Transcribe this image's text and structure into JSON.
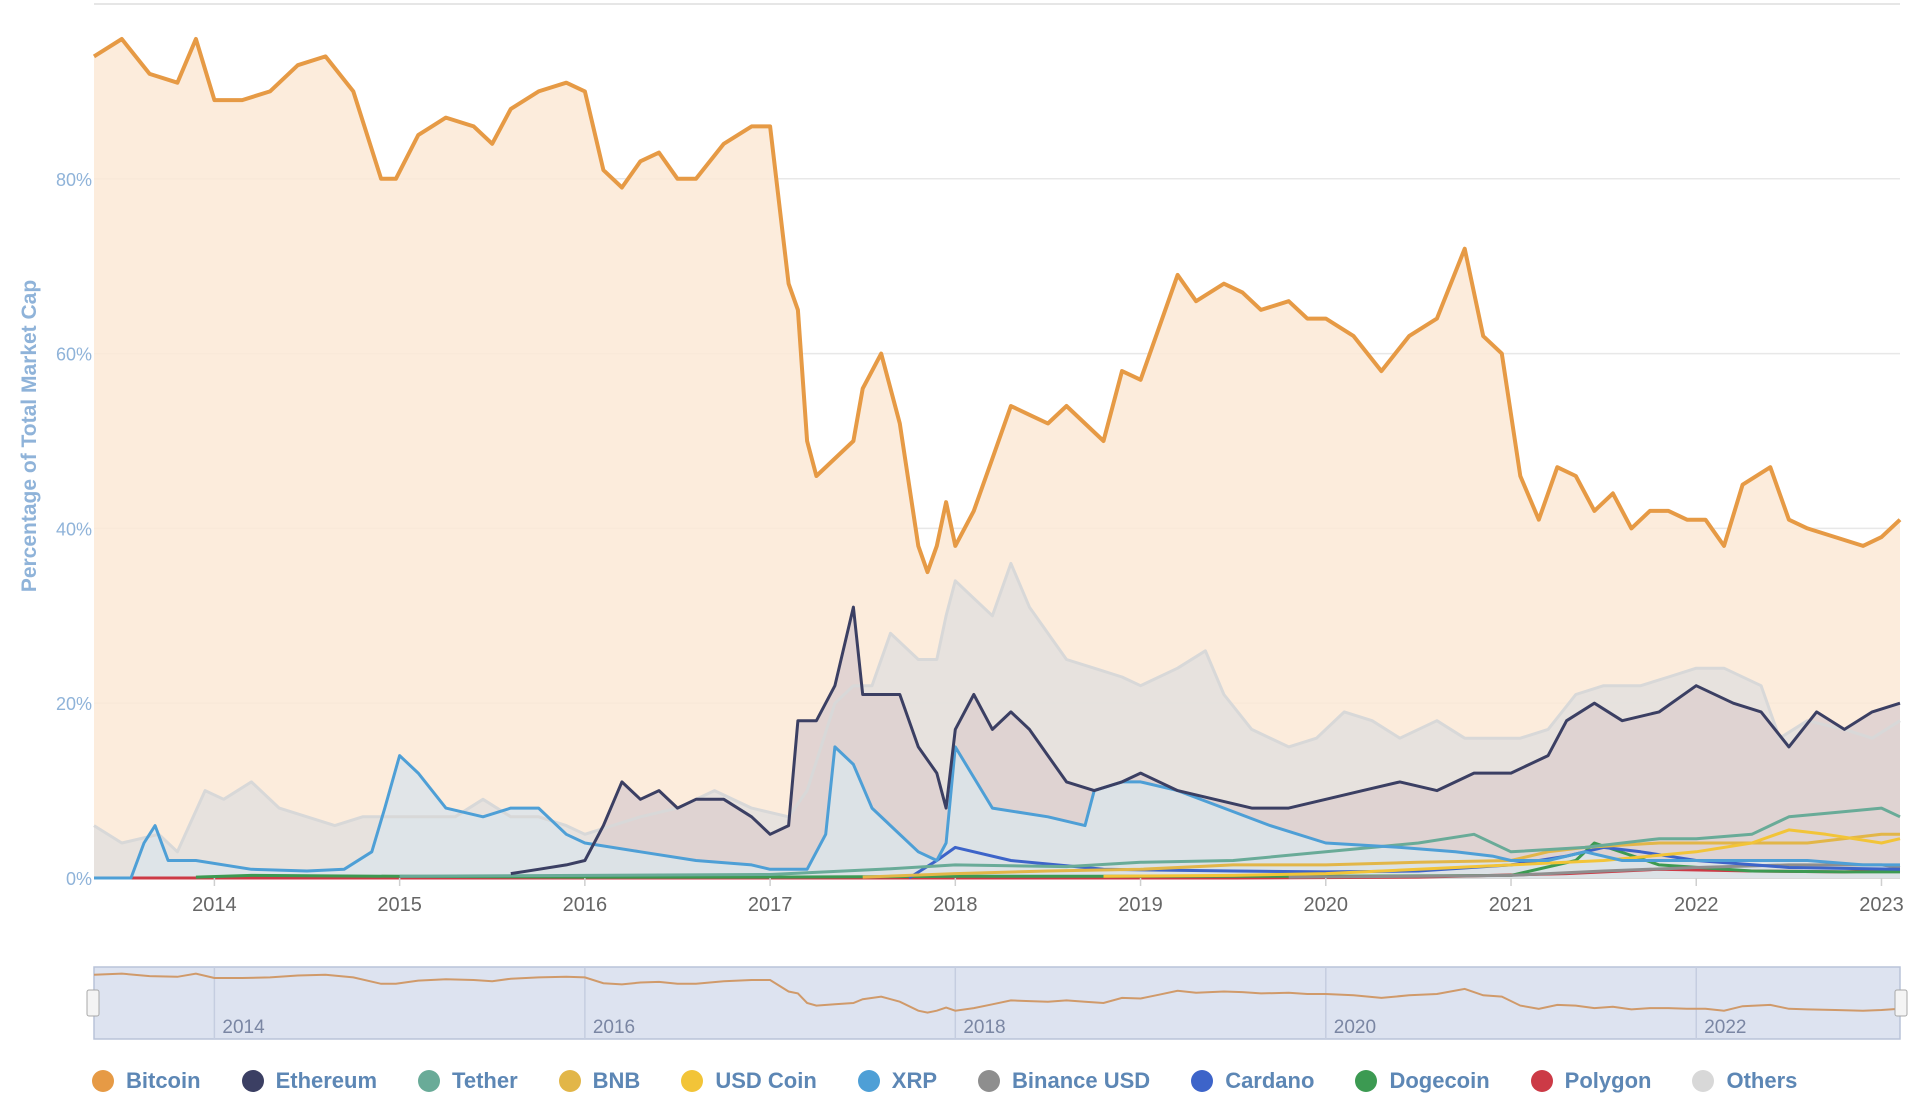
{
  "chart_data": {
    "type": "area",
    "ylabel": "Percentage of Total Market Cap",
    "ylim": [
      0,
      100
    ],
    "yticks": [
      "0%",
      "20%",
      "40%",
      "60%",
      "80%"
    ],
    "xlim": [
      2013.35,
      2023.1
    ],
    "xticks": [
      "2014",
      "2015",
      "2016",
      "2017",
      "2018",
      "2019",
      "2020",
      "2021",
      "2022",
      "2023"
    ],
    "grid": true,
    "legend_position": "bottom",
    "navigator_ticks": [
      "2014",
      "2016",
      "2018",
      "2020",
      "2022"
    ],
    "series": [
      {
        "name": "Bitcoin",
        "color": "#e69a45",
        "fill": "#fbe9d6",
        "x": [
          2013.35,
          2013.5,
          2013.65,
          2013.8,
          2013.9,
          2014.0,
          2014.15,
          2014.3,
          2014.45,
          2014.6,
          2014.75,
          2014.9,
          2014.98,
          2015.1,
          2015.25,
          2015.4,
          2015.5,
          2015.6,
          2015.75,
          2015.9,
          2016.0,
          2016.1,
          2016.2,
          2016.3,
          2016.4,
          2016.5,
          2016.6,
          2016.75,
          2016.9,
          2017.0,
          2017.1,
          2017.15,
          2017.2,
          2017.25,
          2017.35,
          2017.45,
          2017.5,
          2017.6,
          2017.7,
          2017.8,
          2017.85,
          2017.9,
          2017.95,
          2018.0,
          2018.1,
          2018.2,
          2018.3,
          2018.4,
          2018.5,
          2018.6,
          2018.7,
          2018.8,
          2018.9,
          2019.0,
          2019.1,
          2019.2,
          2019.3,
          2019.45,
          2019.55,
          2019.65,
          2019.8,
          2019.9,
          2020.0,
          2020.15,
          2020.3,
          2020.45,
          2020.6,
          2020.75,
          2020.85,
          2020.95,
          2021.05,
          2021.15,
          2021.25,
          2021.35,
          2021.45,
          2021.55,
          2021.65,
          2021.75,
          2021.85,
          2021.95,
          2022.05,
          2022.15,
          2022.25,
          2022.4,
          2022.5,
          2022.6,
          2022.75,
          2022.9,
          2023.0,
          2023.1
        ],
        "values": [
          94,
          96,
          92,
          91,
          96,
          89,
          89,
          90,
          93,
          94,
          90,
          80,
          80,
          85,
          87,
          86,
          84,
          88,
          90,
          91,
          90,
          81,
          79,
          82,
          83,
          80,
          80,
          84,
          86,
          86,
          68,
          65,
          50,
          46,
          48,
          50,
          56,
          60,
          52,
          38,
          35,
          38,
          43,
          38,
          42,
          48,
          54,
          53,
          52,
          54,
          52,
          50,
          58,
          57,
          63,
          69,
          66,
          68,
          67,
          65,
          66,
          64,
          64,
          62,
          58,
          62,
          64,
          72,
          62,
          60,
          46,
          41,
          47,
          46,
          42,
          44,
          40,
          42,
          42,
          41,
          41,
          38,
          45,
          47,
          41,
          40,
          39,
          38,
          39,
          41
        ]
      },
      {
        "name": "Ethereum",
        "color": "#3b3f63",
        "fill": "#ddd0d0",
        "x": [
          2015.6,
          2015.75,
          2015.9,
          2016.0,
          2016.1,
          2016.2,
          2016.3,
          2016.4,
          2016.5,
          2016.6,
          2016.75,
          2016.9,
          2017.0,
          2017.1,
          2017.15,
          2017.25,
          2017.35,
          2017.45,
          2017.5,
          2017.6,
          2017.7,
          2017.8,
          2017.9,
          2017.95,
          2018.0,
          2018.1,
          2018.2,
          2018.3,
          2018.4,
          2018.5,
          2018.6,
          2018.75,
          2018.9,
          2019.0,
          2019.2,
          2019.4,
          2019.6,
          2019.8,
          2020.0,
          2020.2,
          2020.4,
          2020.6,
          2020.8,
          2021.0,
          2021.2,
          2021.3,
          2021.45,
          2021.6,
          2021.8,
          2022.0,
          2022.2,
          2022.35,
          2022.5,
          2022.65,
          2022.8,
          2022.95,
          2023.1
        ],
        "values": [
          0.5,
          1,
          1.5,
          2,
          6,
          11,
          9,
          10,
          8,
          9,
          9,
          7,
          5,
          6,
          18,
          18,
          22,
          31,
          21,
          21,
          21,
          15,
          12,
          8,
          17,
          21,
          17,
          19,
          17,
          14,
          11,
          10,
          11,
          12,
          10,
          9,
          8,
          8,
          9,
          10,
          11,
          10,
          12,
          12,
          14,
          18,
          20,
          18,
          19,
          22,
          20,
          19,
          15,
          19,
          17,
          19,
          20
        ]
      },
      {
        "name": "Tether",
        "color": "#69ab98",
        "fill": "none",
        "x": [
          2015.0,
          2016.0,
          2017.0,
          2017.6,
          2018.0,
          2018.6,
          2019.0,
          2019.5,
          2020.0,
          2020.5,
          2020.8,
          2021.0,
          2021.4,
          2021.8,
          2022.0,
          2022.3,
          2022.5,
          2022.75,
          2023.0,
          2023.1
        ],
        "values": [
          0.2,
          0.3,
          0.4,
          1,
          1.5,
          1.3,
          1.8,
          2,
          3,
          4,
          5,
          3,
          3.5,
          4.5,
          4.5,
          5,
          7,
          7.5,
          8,
          7
        ]
      },
      {
        "name": "BNB",
        "color": "#e2b648",
        "fill": "none",
        "x": [
          2017.5,
          2018.0,
          2018.5,
          2019.0,
          2019.5,
          2020.0,
          2020.5,
          2021.0,
          2021.2,
          2021.4,
          2021.8,
          2022.0,
          2022.3,
          2022.6,
          2023.0,
          2023.1
        ],
        "values": [
          0.1,
          0.5,
          0.8,
          1,
          1.5,
          1.5,
          1.8,
          2,
          3,
          3.5,
          4,
          4,
          4,
          4,
          5,
          5
        ]
      },
      {
        "name": "USD Coin",
        "color": "#f2c438",
        "fill": "none",
        "x": [
          2018.8,
          2019.5,
          2020.0,
          2020.5,
          2021.0,
          2021.5,
          2022.0,
          2022.3,
          2022.5,
          2022.7,
          2023.0,
          2023.1
        ],
        "values": [
          0.2,
          0.3,
          0.5,
          1,
          1.5,
          2,
          3,
          4,
          5.5,
          5,
          4,
          4.5
        ]
      },
      {
        "name": "XRP",
        "color": "#4e9fd6",
        "fill": "#dce4ea",
        "x": [
          2013.35,
          2013.55,
          2013.62,
          2013.68,
          2013.75,
          2013.9,
          2014.2,
          2014.5,
          2014.7,
          2014.85,
          2014.92,
          2015.0,
          2015.1,
          2015.25,
          2015.45,
          2015.6,
          2015.75,
          2015.9,
          2016.0,
          2016.3,
          2016.6,
          2016.9,
          2017.0,
          2017.2,
          2017.3,
          2017.35,
          2017.45,
          2017.55,
          2017.65,
          2017.8,
          2017.9,
          2017.95,
          2018.0,
          2018.2,
          2018.5,
          2018.7,
          2018.75,
          2018.9,
          2019.0,
          2019.2,
          2019.45,
          2019.7,
          2020.0,
          2020.4,
          2020.7,
          2020.9,
          2021.0,
          2021.2,
          2021.4,
          2021.6,
          2021.8,
          2022.0,
          2022.3,
          2022.6,
          2022.9,
          2023.1
        ],
        "values": [
          0,
          0,
          4,
          6,
          2,
          2,
          1,
          0.8,
          1,
          3,
          8,
          14,
          12,
          8,
          7,
          8,
          8,
          5,
          4,
          3,
          2,
          1.5,
          1,
          1,
          5,
          15,
          13,
          8,
          6,
          3,
          2,
          4,
          15,
          8,
          7,
          6,
          10,
          11,
          11,
          10,
          8,
          6,
          4,
          3.5,
          3,
          2.5,
          2,
          2,
          3,
          2,
          2,
          2,
          2,
          2,
          1.5,
          1.5
        ]
      },
      {
        "name": "Binance USD",
        "color": "#8e8e8e",
        "fill": "none",
        "x": [
          2019.8,
          2020.5,
          2021.0,
          2021.5,
          2022.0,
          2022.5,
          2023.0,
          2023.1
        ],
        "values": [
          0.1,
          0.2,
          0.3,
          0.8,
          1.2,
          1.5,
          1.5,
          1.2
        ]
      },
      {
        "name": "Cardano",
        "color": "#3d64c9",
        "fill": "none",
        "x": [
          2017.75,
          2017.9,
          2018.0,
          2018.3,
          2018.8,
          2019.5,
          2020.0,
          2020.5,
          2021.0,
          2021.3,
          2021.5,
          2021.7,
          2022.0,
          2022.5,
          2023.1
        ],
        "values": [
          0,
          2,
          3.5,
          2,
          1,
          0.8,
          0.7,
          0.8,
          1.5,
          2.5,
          3.5,
          3,
          2,
          1.2,
          1
        ]
      },
      {
        "name": "Dogecoin",
        "color": "#3c9a52",
        "fill": "none",
        "x": [
          2013.9,
          2014.2,
          2015.0,
          2016.0,
          2017.0,
          2018.0,
          2019.0,
          2020.0,
          2021.0,
          2021.35,
          2021.45,
          2021.8,
          2022.3,
          2022.8,
          2023.1
        ],
        "values": [
          0.1,
          0.3,
          0.2,
          0.1,
          0.1,
          0.2,
          0.2,
          0.2,
          0.3,
          2,
          4,
          1.5,
          0.8,
          0.7,
          0.7
        ]
      },
      {
        "name": "Polygon",
        "color": "#cc3a46",
        "fill": "none",
        "x": [
          2013.35,
          2019.5,
          2020.5,
          2021.3,
          2021.8,
          2022.3,
          2022.8,
          2023.1
        ],
        "values": [
          0,
          0,
          0.1,
          0.5,
          1,
          0.8,
          0.7,
          0.9
        ]
      },
      {
        "name": "Others",
        "color": "#d8d8d8",
        "fill": "#e3e1de",
        "x": [
          2013.35,
          2013.5,
          2013.7,
          2013.8,
          2013.95,
          2014.05,
          2014.2,
          2014.35,
          2014.5,
          2014.65,
          2014.8,
          2015.0,
          2015.15,
          2015.3,
          2015.45,
          2015.6,
          2015.75,
          2015.9,
          2016.0,
          2016.15,
          2016.3,
          2016.5,
          2016.7,
          2016.9,
          2017.1,
          2017.2,
          2017.35,
          2017.45,
          2017.55,
          2017.65,
          2017.8,
          2017.9,
          2017.95,
          2018.0,
          2018.1,
          2018.2,
          2018.3,
          2018.4,
          2018.5,
          2018.6,
          2018.75,
          2018.9,
          2019.0,
          2019.2,
          2019.35,
          2019.45,
          2019.6,
          2019.8,
          2019.95,
          2020.1,
          2020.25,
          2020.4,
          2020.6,
          2020.75,
          2020.9,
          2021.05,
          2021.2,
          2021.35,
          2021.5,
          2021.7,
          2021.85,
          2022.0,
          2022.15,
          2022.35,
          2022.45,
          2022.6,
          2022.8,
          2022.95,
          2023.1
        ],
        "values": [
          6,
          4,
          5,
          3,
          10,
          9,
          11,
          8,
          7,
          6,
          7,
          7,
          7,
          7,
          9,
          7,
          7,
          6,
          5,
          6,
          7,
          8,
          10,
          8,
          7,
          10,
          20,
          22,
          22,
          28,
          25,
          25,
          30,
          34,
          32,
          30,
          36,
          31,
          28,
          25,
          24,
          23,
          22,
          24,
          26,
          21,
          17,
          15,
          16,
          19,
          18,
          16,
          18,
          16,
          16,
          16,
          17,
          21,
          22,
          22,
          23,
          24,
          24,
          22,
          16,
          18,
          17,
          16,
          18
        ]
      }
    ]
  },
  "legend": [
    {
      "label": "Bitcoin",
      "color": "#e69a45"
    },
    {
      "label": "Ethereum",
      "color": "#3b3f63"
    },
    {
      "label": "Tether",
      "color": "#69ab98"
    },
    {
      "label": "BNB",
      "color": "#e2b648"
    },
    {
      "label": "USD Coin",
      "color": "#f2c438"
    },
    {
      "label": "XRP",
      "color": "#4e9fd6"
    },
    {
      "label": "Binance USD",
      "color": "#8e8e8e"
    },
    {
      "label": "Cardano",
      "color": "#3d64c9"
    },
    {
      "label": "Dogecoin",
      "color": "#3c9a52"
    },
    {
      "label": "Polygon",
      "color": "#cc3a46"
    },
    {
      "label": "Others",
      "color": "#d8d8d8"
    }
  ]
}
